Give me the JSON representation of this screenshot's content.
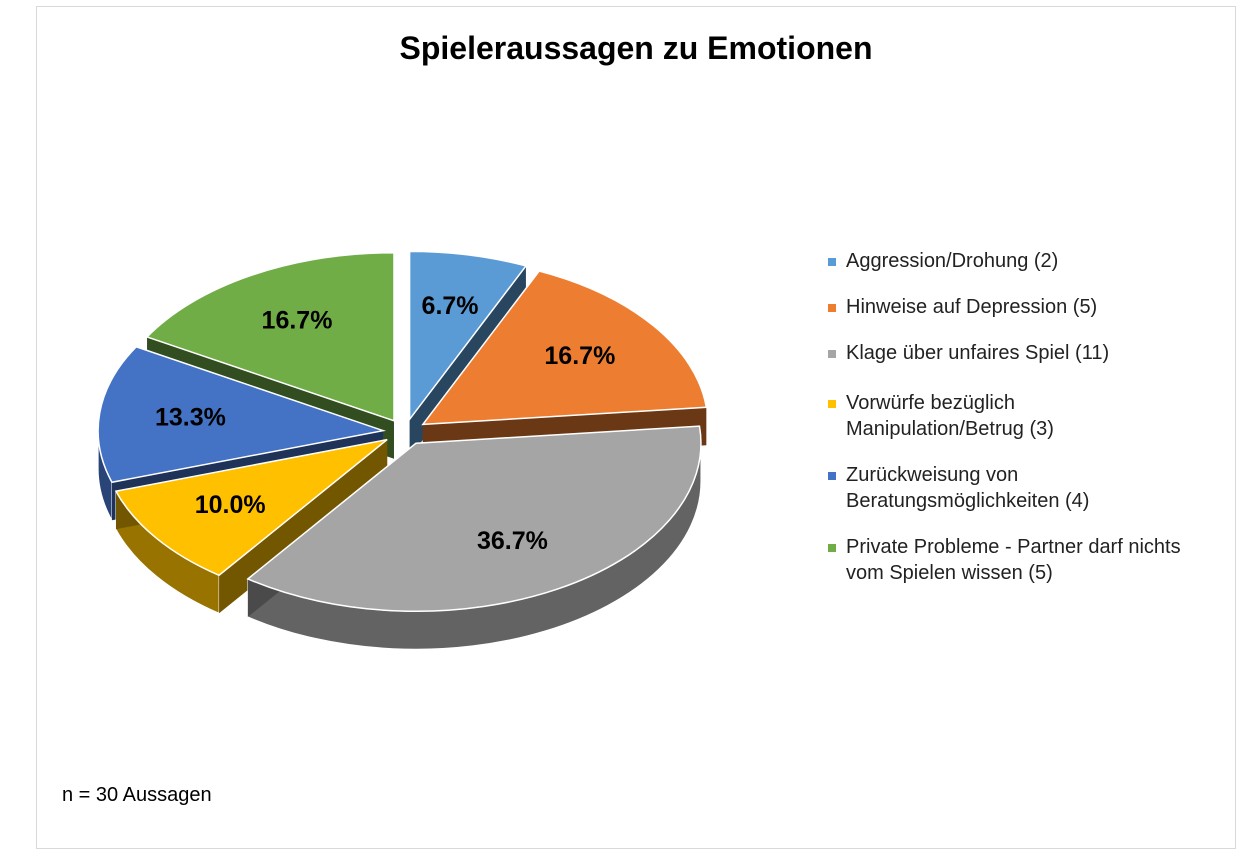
{
  "chart_data": {
    "type": "pie",
    "title": "Spieleraussagen zu Emotionen",
    "categories": [
      "Aggression/Drohung (2)",
      "Hinweise auf Depression (5)",
      "Klage über unfaires Spiel (11)",
      "Vorwürfe bezüglich Manipulation/Betrug (3)",
      "Zurückweisung von Beratungsmöglichkeiten (4)",
      "Private Probleme - Partner darf nichts vom Spielen wissen (5)"
    ],
    "values": [
      6.7,
      16.7,
      36.7,
      10.0,
      13.3,
      16.7
    ],
    "value_labels": [
      "6.7%",
      "16.7%",
      "36.7%",
      "10.0%",
      "13.3%",
      "16.7%"
    ],
    "colors": [
      "#5b9bd5",
      "#ed7d31",
      "#a5a5a5",
      "#ffc000",
      "#4472c4",
      "#70ad47"
    ],
    "footnote": "n = 30 Aussagen"
  }
}
